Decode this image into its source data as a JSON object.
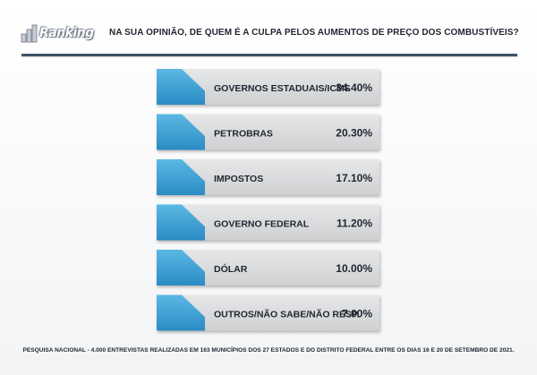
{
  "header": {
    "logo_text": "Ranking",
    "title": "NA SUA OPINIÃO, DE QUEM É A CULPA PELOS AUMENTOS DE PREÇO DOS COMBUSTÍVEIS?"
  },
  "footnote": "PESQUISA NACIONAL - 4.000 ENTREVISTAS REALIZADAS EM 163 MUNICÍPIOS DOS 27 ESTADOS E DO DISTRITO FEDERAL ENTRE OS DIAS 16 E 20 DE SETEMBRO DE 2021.",
  "colors": {
    "accent_blue": "#3aa1d6",
    "card_gray": "#d9dadb",
    "text_dark": "#1f2530",
    "rule": "#415264"
  },
  "chart_data": {
    "type": "table",
    "title": "NA SUA OPINIÃO, DE QUEM É A CULPA PELOS AUMENTOS DE PREÇO DOS COMBUSTÍVEIS?",
    "categories": [
      "GOVERNOS ESTADUAIS/ICMS",
      "PETROBRAS",
      "IMPOSTOS",
      "GOVERNO FEDERAL",
      "DÓLAR",
      "OUTROS/NÃO SABE/NÃO RESP."
    ],
    "values": [
      34.4,
      20.3,
      17.1,
      11.2,
      10.0,
      7.0
    ],
    "value_labels": [
      "34.40%",
      "20.30%",
      "17.10%",
      "11.20%",
      "10.00%",
      "7.00%"
    ]
  }
}
